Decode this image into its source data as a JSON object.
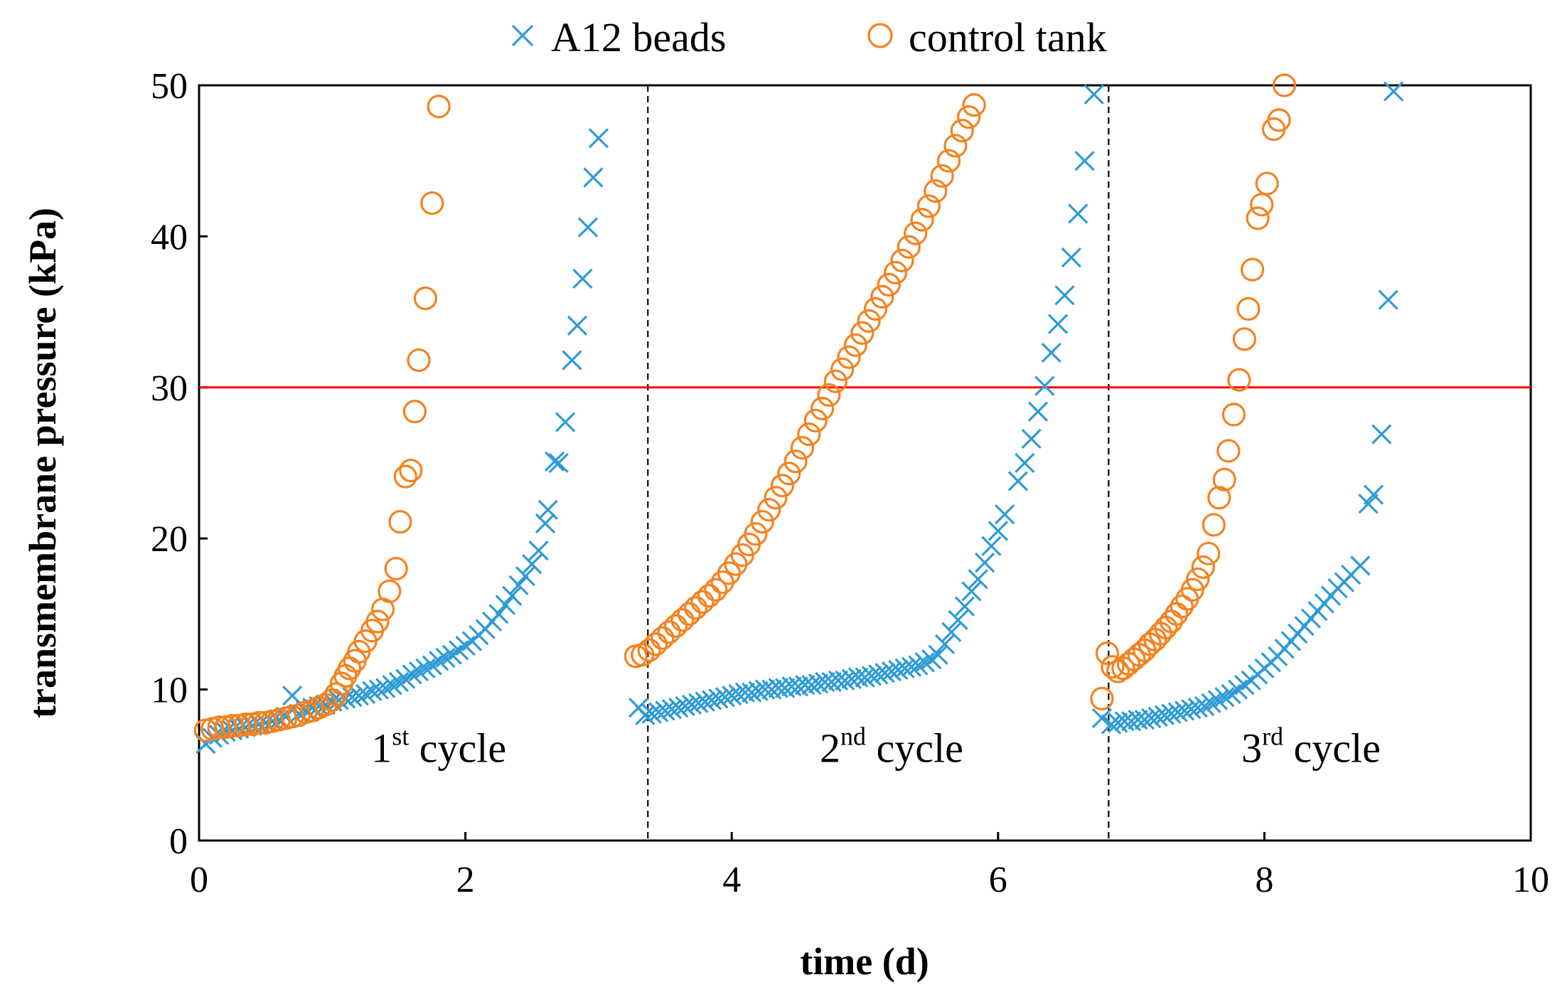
{
  "chart_data": {
    "type": "scatter",
    "xlabel": "time (d)",
    "ylabel": "transmembrane pressure (kPa)",
    "xlim": [
      0,
      10
    ],
    "ylim": [
      0,
      50
    ],
    "xticks": [
      "0",
      "2",
      "4",
      "6",
      "8",
      "10"
    ],
    "xtick_values": [
      0,
      2,
      4,
      6,
      8,
      10
    ],
    "yticks": [
      "0",
      "10",
      "20",
      "30",
      "40",
      "50"
    ],
    "ytick_values": [
      0,
      10,
      20,
      30,
      40,
      50
    ],
    "grid": false,
    "legend": "top",
    "reference_line": {
      "y": 30,
      "color": "#ff0000"
    },
    "cycle_dividers": [
      3.37,
      6.83
    ],
    "cycle_labels": [
      {
        "base": "1",
        "sup": "st",
        "rest": " cycle",
        "x": 1.8,
        "y": 5.2
      },
      {
        "base": "2",
        "sup": "nd",
        "rest": " cycle",
        "x": 5.2,
        "y": 5.2
      },
      {
        "base": "3",
        "sup": "rd",
        "rest": " cycle",
        "x": 8.35,
        "y": 5.2
      }
    ],
    "series": [
      {
        "name": "A12 beads",
        "marker": "x",
        "color": "#2e9bd6",
        "points": [
          [
            0.05,
            6.4
          ],
          [
            0.1,
            6.8
          ],
          [
            0.15,
            7.0
          ],
          [
            0.2,
            7.2
          ],
          [
            0.25,
            7.3
          ],
          [
            0.3,
            7.4
          ],
          [
            0.35,
            7.5
          ],
          [
            0.4,
            7.6
          ],
          [
            0.45,
            7.7
          ],
          [
            0.5,
            7.8
          ],
          [
            0.55,
            7.9
          ],
          [
            0.6,
            8.0
          ],
          [
            0.65,
            8.2
          ],
          [
            0.7,
            9.6
          ],
          [
            0.75,
            8.4
          ],
          [
            0.8,
            8.6
          ],
          [
            0.85,
            8.8
          ],
          [
            0.9,
            8.9
          ],
          [
            0.95,
            9.0
          ],
          [
            1.0,
            9.2
          ],
          [
            1.05,
            9.3
          ],
          [
            1.1,
            9.4
          ],
          [
            1.15,
            9.5
          ],
          [
            1.2,
            9.6
          ],
          [
            1.25,
            9.7
          ],
          [
            1.3,
            9.9
          ],
          [
            1.35,
            10.0
          ],
          [
            1.4,
            10.1
          ],
          [
            1.45,
            10.3
          ],
          [
            1.5,
            10.5
          ],
          [
            1.55,
            10.7
          ],
          [
            1.6,
            11.0
          ],
          [
            1.65,
            11.2
          ],
          [
            1.7,
            11.4
          ],
          [
            1.75,
            11.6
          ],
          [
            1.8,
            11.9
          ],
          [
            1.85,
            12.1
          ],
          [
            1.9,
            12.3
          ],
          [
            1.95,
            12.6
          ],
          [
            2.0,
            12.9
          ],
          [
            2.05,
            13.2
          ],
          [
            2.1,
            13.6
          ],
          [
            2.15,
            14.0
          ],
          [
            2.2,
            14.5
          ],
          [
            2.25,
            15.0
          ],
          [
            2.3,
            15.6
          ],
          [
            2.35,
            16.2
          ],
          [
            2.4,
            16.9
          ],
          [
            2.45,
            17.5
          ],
          [
            2.5,
            18.3
          ],
          [
            2.55,
            19.2
          ],
          [
            2.6,
            21.0
          ],
          [
            2.62,
            21.9
          ],
          [
            2.67,
            25.1
          ],
          [
            2.7,
            25.0
          ],
          [
            2.75,
            27.7
          ],
          [
            2.8,
            31.8
          ],
          [
            2.84,
            34.1
          ],
          [
            2.88,
            37.2
          ],
          [
            2.92,
            40.6
          ],
          [
            2.96,
            43.9
          ],
          [
            3.0,
            46.5
          ],
          [
            3.3,
            8.8
          ],
          [
            3.35,
            8.3
          ],
          [
            3.4,
            8.4
          ],
          [
            3.45,
            8.5
          ],
          [
            3.5,
            8.6
          ],
          [
            3.55,
            8.7
          ],
          [
            3.6,
            8.8
          ],
          [
            3.65,
            8.9
          ],
          [
            3.7,
            9.0
          ],
          [
            3.75,
            9.1
          ],
          [
            3.8,
            9.2
          ],
          [
            3.85,
            9.3
          ],
          [
            3.9,
            9.4
          ],
          [
            3.95,
            9.5
          ],
          [
            4.0,
            9.6
          ],
          [
            4.05,
            9.7
          ],
          [
            4.1,
            9.8
          ],
          [
            4.15,
            9.8
          ],
          [
            4.2,
            9.9
          ],
          [
            4.25,
            10.0
          ],
          [
            4.3,
            10.0
          ],
          [
            4.35,
            10.1
          ],
          [
            4.4,
            10.1
          ],
          [
            4.45,
            10.2
          ],
          [
            4.5,
            10.2
          ],
          [
            4.55,
            10.3
          ],
          [
            4.6,
            10.3
          ],
          [
            4.65,
            10.4
          ],
          [
            4.7,
            10.5
          ],
          [
            4.75,
            10.5
          ],
          [
            4.8,
            10.6
          ],
          [
            4.85,
            10.6
          ],
          [
            4.9,
            10.7
          ],
          [
            4.95,
            10.8
          ],
          [
            5.0,
            10.8
          ],
          [
            5.05,
            10.9
          ],
          [
            5.1,
            11.0
          ],
          [
            5.15,
            11.1
          ],
          [
            5.2,
            11.2
          ],
          [
            5.25,
            11.3
          ],
          [
            5.3,
            11.4
          ],
          [
            5.35,
            11.5
          ],
          [
            5.4,
            11.6
          ],
          [
            5.45,
            11.8
          ],
          [
            5.5,
            12.0
          ],
          [
            5.55,
            12.3
          ],
          [
            5.6,
            13.0
          ],
          [
            5.65,
            13.8
          ],
          [
            5.7,
            14.6
          ],
          [
            5.75,
            15.5
          ],
          [
            5.8,
            16.5
          ],
          [
            5.85,
            17.3
          ],
          [
            5.9,
            18.4
          ],
          [
            5.95,
            19.5
          ],
          [
            6.0,
            20.5
          ],
          [
            6.05,
            21.6
          ],
          [
            6.15,
            23.8
          ],
          [
            6.2,
            25.0
          ],
          [
            6.25,
            26.6
          ],
          [
            6.3,
            28.4
          ],
          [
            6.35,
            30.1
          ],
          [
            6.4,
            32.3
          ],
          [
            6.45,
            34.2
          ],
          [
            6.5,
            36.1
          ],
          [
            6.55,
            38.6
          ],
          [
            6.6,
            41.5
          ],
          [
            6.65,
            45.0
          ],
          [
            6.72,
            49.4
          ],
          [
            6.78,
            8.1
          ],
          [
            6.85,
            7.7
          ],
          [
            6.9,
            7.8
          ],
          [
            6.95,
            7.9
          ],
          [
            7.0,
            7.9
          ],
          [
            7.05,
            8.0
          ],
          [
            7.1,
            8.0
          ],
          [
            7.15,
            8.1
          ],
          [
            7.2,
            8.2
          ],
          [
            7.25,
            8.3
          ],
          [
            7.3,
            8.4
          ],
          [
            7.35,
            8.5
          ],
          [
            7.4,
            8.6
          ],
          [
            7.45,
            8.7
          ],
          [
            7.5,
            8.8
          ],
          [
            7.55,
            8.9
          ],
          [
            7.6,
            9.1
          ],
          [
            7.65,
            9.3
          ],
          [
            7.7,
            9.5
          ],
          [
            7.75,
            9.7
          ],
          [
            7.8,
            10.0
          ],
          [
            7.85,
            10.3
          ],
          [
            7.9,
            10.6
          ],
          [
            7.95,
            11.0
          ],
          [
            8.0,
            11.4
          ],
          [
            8.05,
            11.8
          ],
          [
            8.1,
            12.2
          ],
          [
            8.15,
            12.7
          ],
          [
            8.2,
            13.2
          ],
          [
            8.25,
            13.7
          ],
          [
            8.3,
            14.2
          ],
          [
            8.35,
            14.7
          ],
          [
            8.4,
            15.2
          ],
          [
            8.45,
            15.7
          ],
          [
            8.5,
            16.2
          ],
          [
            8.55,
            16.7
          ],
          [
            8.6,
            17.1
          ],
          [
            8.65,
            17.6
          ],
          [
            8.72,
            18.2
          ],
          [
            8.78,
            22.3
          ],
          [
            8.82,
            22.9
          ],
          [
            8.88,
            26.9
          ],
          [
            8.93,
            35.8
          ],
          [
            8.97,
            49.6
          ]
        ]
      },
      {
        "name": "control tank",
        "marker": "o",
        "color": "#f58220",
        "points": [
          [
            0.05,
            7.3
          ],
          [
            0.1,
            7.4
          ],
          [
            0.15,
            7.5
          ],
          [
            0.2,
            7.5
          ],
          [
            0.25,
            7.6
          ],
          [
            0.3,
            7.6
          ],
          [
            0.35,
            7.7
          ],
          [
            0.4,
            7.7
          ],
          [
            0.45,
            7.8
          ],
          [
            0.5,
            7.8
          ],
          [
            0.55,
            7.9
          ],
          [
            0.6,
            8.0
          ],
          [
            0.65,
            8.1
          ],
          [
            0.7,
            8.2
          ],
          [
            0.75,
            8.3
          ],
          [
            0.8,
            8.5
          ],
          [
            0.85,
            8.6
          ],
          [
            0.9,
            8.8
          ],
          [
            0.95,
            9.0
          ],
          [
            1.0,
            9.3
          ],
          [
            1.03,
            9.7
          ],
          [
            1.07,
            10.4
          ],
          [
            1.1,
            10.9
          ],
          [
            1.13,
            11.4
          ],
          [
            1.17,
            11.9
          ],
          [
            1.2,
            12.5
          ],
          [
            1.25,
            13.2
          ],
          [
            1.3,
            13.9
          ],
          [
            1.34,
            14.5
          ],
          [
            1.38,
            15.3
          ],
          [
            1.43,
            16.5
          ],
          [
            1.48,
            18.0
          ],
          [
            1.51,
            21.1
          ],
          [
            1.55,
            24.1
          ],
          [
            1.59,
            24.5
          ],
          [
            1.62,
            28.4
          ],
          [
            1.65,
            31.8
          ],
          [
            1.7,
            35.9
          ],
          [
            1.75,
            42.2
          ],
          [
            1.8,
            48.6
          ],
          [
            3.28,
            12.2
          ],
          [
            3.33,
            12.3
          ],
          [
            3.38,
            12.6
          ],
          [
            3.43,
            13.0
          ],
          [
            3.48,
            13.4
          ],
          [
            3.53,
            13.8
          ],
          [
            3.58,
            14.2
          ],
          [
            3.63,
            14.6
          ],
          [
            3.68,
            15.0
          ],
          [
            3.73,
            15.4
          ],
          [
            3.78,
            15.8
          ],
          [
            3.83,
            16.2
          ],
          [
            3.88,
            16.6
          ],
          [
            3.93,
            17.1
          ],
          [
            3.98,
            17.7
          ],
          [
            4.03,
            18.3
          ],
          [
            4.08,
            18.9
          ],
          [
            4.13,
            19.6
          ],
          [
            4.18,
            20.3
          ],
          [
            4.23,
            21.1
          ],
          [
            4.28,
            21.9
          ],
          [
            4.33,
            22.7
          ],
          [
            4.38,
            23.5
          ],
          [
            4.43,
            24.3
          ],
          [
            4.48,
            25.1
          ],
          [
            4.53,
            26.0
          ],
          [
            4.58,
            26.9
          ],
          [
            4.63,
            27.8
          ],
          [
            4.68,
            28.6
          ],
          [
            4.73,
            29.5
          ],
          [
            4.78,
            30.4
          ],
          [
            4.83,
            31.2
          ],
          [
            4.88,
            32.0
          ],
          [
            4.93,
            32.8
          ],
          [
            4.98,
            33.6
          ],
          [
            5.03,
            34.4
          ],
          [
            5.08,
            35.2
          ],
          [
            5.13,
            36.0
          ],
          [
            5.18,
            36.8
          ],
          [
            5.23,
            37.6
          ],
          [
            5.28,
            38.4
          ],
          [
            5.33,
            39.3
          ],
          [
            5.38,
            40.2
          ],
          [
            5.43,
            41.1
          ],
          [
            5.48,
            42.0
          ],
          [
            5.53,
            43.0
          ],
          [
            5.58,
            44.0
          ],
          [
            5.63,
            45.0
          ],
          [
            5.68,
            46.0
          ],
          [
            5.73,
            47.0
          ],
          [
            5.78,
            47.9
          ],
          [
            5.82,
            48.7
          ],
          [
            6.78,
            9.4
          ],
          [
            6.82,
            12.4
          ],
          [
            6.86,
            11.5
          ],
          [
            6.9,
            11.2
          ],
          [
            6.94,
            11.4
          ],
          [
            6.98,
            11.7
          ],
          [
            7.02,
            12.0
          ],
          [
            7.06,
            12.3
          ],
          [
            7.1,
            12.6
          ],
          [
            7.14,
            13.0
          ],
          [
            7.18,
            13.3
          ],
          [
            7.22,
            13.7
          ],
          [
            7.26,
            14.1
          ],
          [
            7.3,
            14.5
          ],
          [
            7.34,
            15.0
          ],
          [
            7.38,
            15.5
          ],
          [
            7.42,
            16.0
          ],
          [
            7.46,
            16.6
          ],
          [
            7.5,
            17.3
          ],
          [
            7.54,
            18.1
          ],
          [
            7.58,
            19.0
          ],
          [
            7.62,
            20.9
          ],
          [
            7.66,
            22.7
          ],
          [
            7.7,
            23.9
          ],
          [
            7.73,
            25.8
          ],
          [
            7.77,
            28.2
          ],
          [
            7.81,
            30.5
          ],
          [
            7.85,
            33.2
          ],
          [
            7.88,
            35.2
          ],
          [
            7.91,
            37.8
          ],
          [
            7.95,
            41.2
          ],
          [
            7.98,
            42.1
          ],
          [
            8.02,
            43.5
          ],
          [
            8.07,
            47.1
          ],
          [
            8.11,
            47.7
          ],
          [
            8.15,
            50.0
          ]
        ]
      }
    ]
  }
}
